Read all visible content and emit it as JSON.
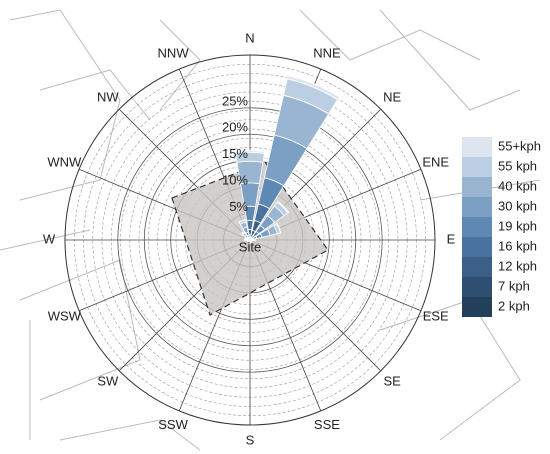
{
  "chart_data": {
    "type": "windrose",
    "annotation": "Site",
    "categories": [
      "N",
      "NNE",
      "NE",
      "ENE",
      "E",
      "ESE",
      "SE",
      "SSE",
      "S",
      "SSW",
      "SW",
      "WSW",
      "W",
      "WNW",
      "NW",
      "NNW"
    ],
    "rlim": [
      0,
      35
    ],
    "rticks": [
      {
        "value": 5,
        "label": "5%"
      },
      {
        "value": 10,
        "label": "10%"
      },
      {
        "value": 15,
        "label": "15%"
      },
      {
        "value": 20,
        "label": "20%"
      },
      {
        "value": 25,
        "label": "25%"
      }
    ],
    "grid": true,
    "series": [
      {
        "name": "2 kph",
        "color": "#243f5a",
        "values": [
          0.3,
          0.6,
          0.2,
          0.1,
          0,
          0,
          0,
          0,
          0,
          0,
          0,
          0,
          0,
          0,
          0,
          0.1
        ]
      },
      {
        "name": "7 kph",
        "color": "#2e4f72",
        "values": [
          0.7,
          1.3,
          0.4,
          0.2,
          0,
          0,
          0,
          0,
          0,
          0,
          0,
          0,
          0,
          0,
          0.1,
          0.2
        ]
      },
      {
        "name": "12 kph",
        "color": "#3b5f87",
        "values": [
          1,
          1.9,
          0.5,
          0.4,
          0.1,
          0,
          0,
          0,
          0,
          0,
          0,
          0,
          0.1,
          0.1,
          0.1,
          0.2
        ]
      },
      {
        "name": "16 kph",
        "color": "#4a72a0",
        "values": [
          1.7,
          3.2,
          0.9,
          0.6,
          0.1,
          0.1,
          0.1,
          0.1,
          0.1,
          0.1,
          0.1,
          0.1,
          0.1,
          0.1,
          0.2,
          0.4
        ]
      },
      {
        "name": "19 kph",
        "color": "#6088b4",
        "values": [
          2.7,
          5.1,
          1.4,
          1,
          0.2,
          0.1,
          0.1,
          0.1,
          0.1,
          0.1,
          0.1,
          0.1,
          0.2,
          0.2,
          0.3,
          0.6
        ]
      },
      {
        "name": "30 kph",
        "color": "#7c9fc4",
        "values": [
          4.4,
          8.3,
          2.3,
          1.6,
          0.3,
          0.1,
          0.1,
          0.1,
          0.1,
          0.1,
          0.1,
          0.1,
          0.3,
          0.3,
          0.5,
          1
        ]
      },
      {
        "name": "40 kph",
        "color": "#9ab5d2",
        "values": [
          4.1,
          7.7,
          2.2,
          1.4,
          0.2,
          0.1,
          0.1,
          0.1,
          0.1,
          0.1,
          0.1,
          0.1,
          0.2,
          0.2,
          0.5,
          1
        ]
      },
      {
        "name": "55 kph",
        "color": "#bccfe2",
        "values": [
          1.7,
          3.2,
          0.9,
          0.6,
          0.1,
          0.1,
          0.1,
          0.1,
          0.1,
          0.1,
          0.1,
          0.1,
          0.1,
          0.1,
          0.2,
          0.4
        ]
      },
      {
        "name": "55+kph",
        "color": "#dde6f0",
        "values": [
          0.3,
          0.6,
          0.2,
          0.1,
          0,
          0,
          0,
          0,
          0,
          0,
          0,
          0,
          0,
          0,
          0.1,
          0.1
        ]
      }
    ]
  }
}
